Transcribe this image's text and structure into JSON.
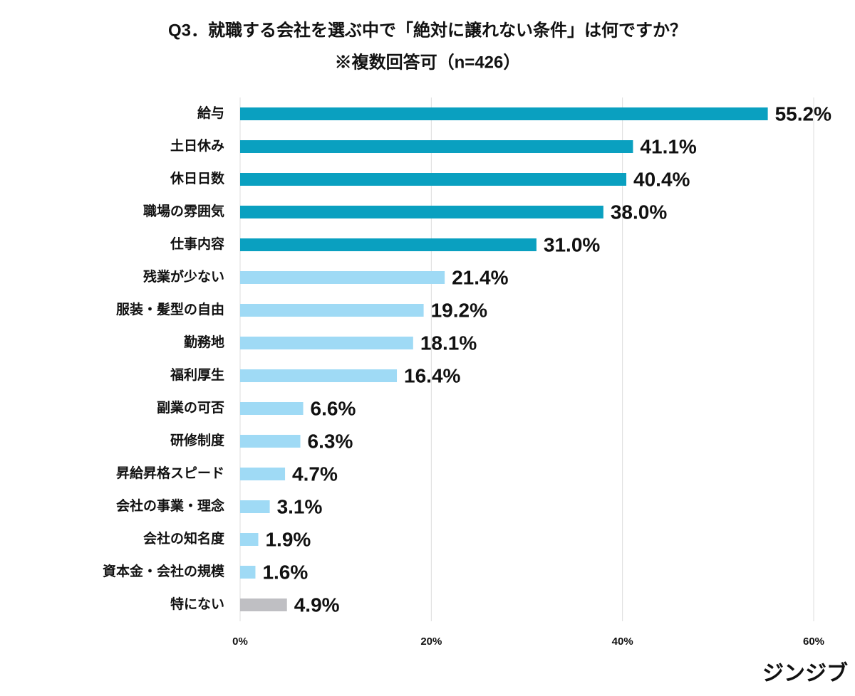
{
  "chart_data": {
    "type": "hbar",
    "title": "Q3．就職する会社を選ぶ中で「絶対に譲れない条件」は何ですか？",
    "subtitle": "※複数回答可（n=426）",
    "categories": [
      "給与",
      "土日休み",
      "休日日数",
      "職場の雰囲気",
      "仕事内容",
      "残業が少ない",
      "服装・髪型の自由",
      "勤務地",
      "福利厚生",
      "副業の可否",
      "研修制度",
      "昇給昇格スピード",
      "会社の事業・理念",
      "会社の知名度",
      "資本金・会社の規模",
      "特にない"
    ],
    "values": [
      55.2,
      41.1,
      40.4,
      38.0,
      31.0,
      21.4,
      19.2,
      18.1,
      16.4,
      6.6,
      6.3,
      4.7,
      3.1,
      1.9,
      1.6,
      4.9
    ],
    "value_labels": [
      "55.2%",
      "41.1%",
      "40.4%",
      "38.0%",
      "31.0%",
      "21.4%",
      "19.2%",
      "18.1%",
      "16.4%",
      "6.6%",
      "6.3%",
      "4.7%",
      "3.1%",
      "1.9%",
      "1.6%",
      "4.9%"
    ],
    "colors": [
      "#0aa0c0",
      "#0aa0c0",
      "#0aa0c0",
      "#0aa0c0",
      "#0aa0c0",
      "#9fdaf5",
      "#9fdaf5",
      "#9fdaf5",
      "#9fdaf5",
      "#9fdaf5",
      "#9fdaf5",
      "#9fdaf5",
      "#9fdaf5",
      "#9fdaf5",
      "#9fdaf5",
      "#bfbfc3"
    ],
    "xlim": [
      0,
      60
    ],
    "xticks": [
      {
        "value": 0,
        "label": "0%"
      },
      {
        "value": 20,
        "label": "20%"
      },
      {
        "value": 40,
        "label": "40%"
      },
      {
        "value": 60,
        "label": "60%"
      }
    ],
    "grid": true,
    "brand": "ジンジブ"
  }
}
